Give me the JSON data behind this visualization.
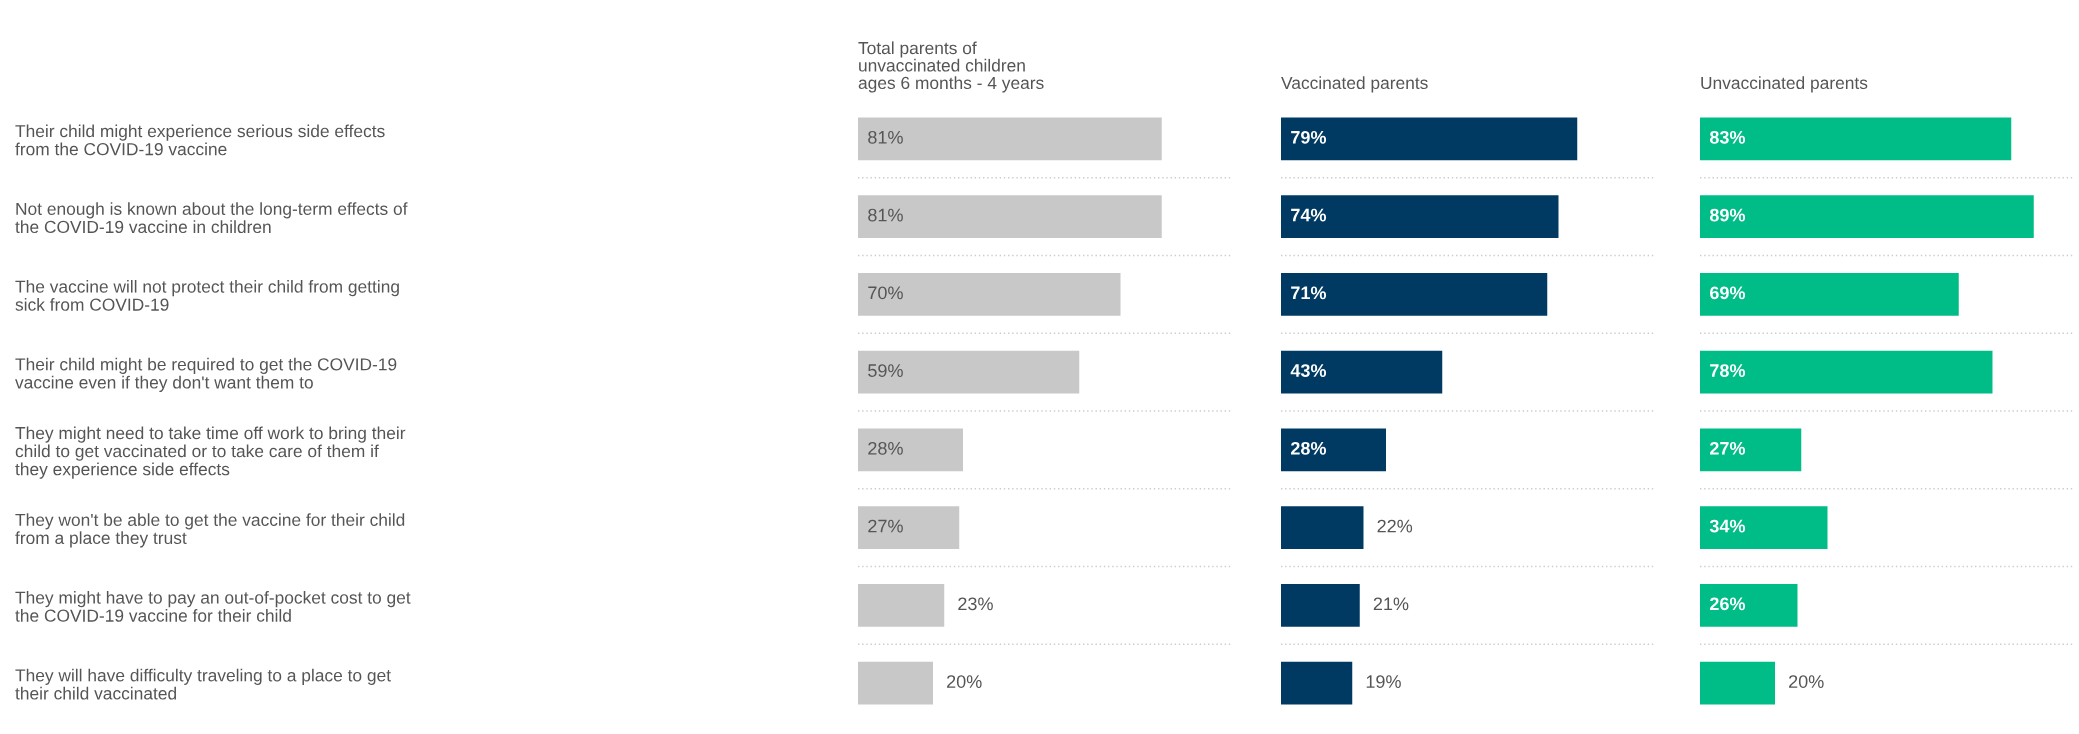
{
  "chart_data": [
    {
      "type": "bar",
      "orientation": "horizontal",
      "title": "Total parents of\nunvaccinated children\nages 6 months - 4 years",
      "categories": [
        "Their child might experience serious side effects\nfrom the COVID-19 vaccine",
        "Not enough is known about the long-term effects of\nthe COVID-19 vaccine in children",
        "The vaccine will not protect their child from getting\nsick from COVID-19",
        "Their child might be required to get the COVID-19\nvaccine even if they don't want them to",
        "They might need to take time off work to bring their\nchild to get vaccinated or to take care of them if\nthey experience side effects",
        "They won't be able to get the vaccine for their child\nfrom a place they trust",
        "They might have to pay an out-of-pocket cost to get\nthe COVID-19 vaccine for their child",
        "They will have difficulty traveling to a place to get\ntheir child vaccinated"
      ],
      "values": [
        81,
        81,
        70,
        59,
        28,
        27,
        23,
        20
      ],
      "value_labels": [
        "81%",
        "81%",
        "70%",
        "59%",
        "28%",
        "27%",
        "23%",
        "20%"
      ],
      "color": "#c8c8c8",
      "xlim": [
        0,
        100
      ],
      "tick_labels": "y"
    },
    {
      "type": "bar",
      "orientation": "horizontal",
      "title": "Vaccinated parents",
      "values": [
        79,
        74,
        71,
        43,
        28,
        22,
        21,
        19
      ],
      "value_labels": [
        "79%",
        "74%",
        "71%",
        "43%",
        "28%",
        "22%",
        "21%",
        "19%"
      ],
      "color": "#003a63",
      "xlim": [
        0,
        100
      ],
      "tick_labels": false
    },
    {
      "type": "bar",
      "orientation": "horizontal",
      "title": "Unvaccinated parents",
      "values": [
        83,
        89,
        69,
        78,
        27,
        34,
        26,
        20
      ],
      "value_labels": [
        "83%",
        "89%",
        "69%",
        "78%",
        "27%",
        "34%",
        "26%",
        "20%"
      ],
      "color": "#00bc87",
      "xlim": [
        0,
        100
      ],
      "tick_labels": false
    }
  ]
}
